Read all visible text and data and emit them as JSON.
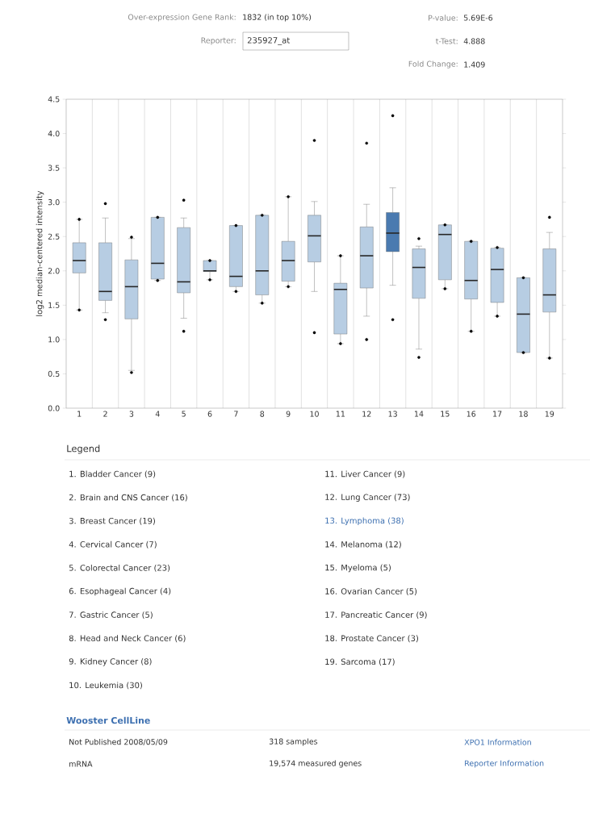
{
  "chart_data": {
    "type": "box",
    "ylabel": "log2 median-centered intensity",
    "categories": [
      "1",
      "2",
      "3",
      "4",
      "5",
      "6",
      "7",
      "8",
      "9",
      "10",
      "11",
      "12",
      "13",
      "14",
      "15",
      "16",
      "17",
      "18",
      "19"
    ],
    "colors": [
      "#b7cde3",
      "#b7cde3",
      "#b7cde3",
      "#b7cde3",
      "#b7cde3",
      "#b7cde3",
      "#b7cde3",
      "#b7cde3",
      "#b7cde3",
      "#b7cde3",
      "#b7cde3",
      "#b7cde3",
      "#4a7ab0",
      "#b7cde3",
      "#b7cde3",
      "#b7cde3",
      "#b7cde3",
      "#b7cde3",
      "#b7cde3"
    ],
    "boxes": [
      {
        "low": 1.43,
        "q1": 1.97,
        "median": 2.15,
        "q3": 2.41,
        "high": 2.75,
        "outliers": [
          2.75,
          1.43
        ]
      },
      {
        "low": 1.39,
        "q1": 1.57,
        "median": 1.7,
        "q3": 2.41,
        "high": 2.77,
        "outliers": [
          2.98,
          1.29
        ]
      },
      {
        "low": 0.55,
        "q1": 1.3,
        "median": 1.77,
        "q3": 2.16,
        "high": 2.47,
        "outliers": [
          2.49,
          0.52
        ]
      },
      {
        "low": 1.86,
        "q1": 1.88,
        "median": 2.11,
        "q3": 2.78,
        "high": 2.78,
        "outliers": [
          2.78,
          1.86
        ]
      },
      {
        "low": 1.31,
        "q1": 1.68,
        "median": 1.84,
        "q3": 2.63,
        "high": 2.77,
        "outliers": [
          3.03,
          1.12
        ]
      },
      {
        "low": 1.87,
        "q1": 1.99,
        "median": 2.0,
        "q3": 2.15,
        "high": 2.15,
        "outliers": [
          2.15,
          1.87
        ]
      },
      {
        "low": 1.7,
        "q1": 1.77,
        "median": 1.92,
        "q3": 2.66,
        "high": 2.66,
        "outliers": [
          2.66,
          1.7
        ]
      },
      {
        "low": 1.53,
        "q1": 1.65,
        "median": 2.0,
        "q3": 2.81,
        "high": 2.81,
        "outliers": [
          2.81,
          1.53
        ]
      },
      {
        "low": 1.77,
        "q1": 1.85,
        "median": 2.15,
        "q3": 2.43,
        "high": 3.08,
        "outliers": [
          3.08,
          1.77
        ]
      },
      {
        "low": 1.7,
        "q1": 2.13,
        "median": 2.51,
        "q3": 2.81,
        "high": 3.01,
        "outliers": [
          3.9,
          1.1
        ]
      },
      {
        "low": 0.94,
        "q1": 1.08,
        "median": 1.73,
        "q3": 1.82,
        "high": 2.22,
        "outliers": [
          2.22,
          0.94
        ]
      },
      {
        "low": 1.34,
        "q1": 1.75,
        "median": 2.22,
        "q3": 2.64,
        "high": 2.97,
        "outliers": [
          3.86,
          1.0
        ]
      },
      {
        "low": 1.79,
        "q1": 2.28,
        "median": 2.55,
        "q3": 2.85,
        "high": 3.21,
        "outliers": [
          4.26,
          1.29
        ]
      },
      {
        "low": 0.86,
        "q1": 1.6,
        "median": 2.05,
        "q3": 2.32,
        "high": 2.36,
        "outliers": [
          2.47,
          0.74
        ]
      },
      {
        "low": 1.74,
        "q1": 1.87,
        "median": 2.53,
        "q3": 2.67,
        "high": 2.67,
        "outliers": [
          2.67,
          1.74
        ]
      },
      {
        "low": 1.12,
        "q1": 1.59,
        "median": 1.86,
        "q3": 2.43,
        "high": 2.43,
        "outliers": [
          2.43,
          1.12
        ]
      },
      {
        "low": 1.34,
        "q1": 1.54,
        "median": 2.02,
        "q3": 2.33,
        "high": 2.34,
        "outliers": [
          2.34,
          1.34
        ]
      },
      {
        "low": 0.81,
        "q1": 0.81,
        "median": 1.37,
        "q3": 1.9,
        "high": 1.9,
        "outliers": [
          1.9,
          0.81
        ]
      },
      {
        "low": 0.73,
        "q1": 1.4,
        "median": 1.65,
        "q3": 2.32,
        "high": 2.56,
        "outliers": [
          2.78,
          0.73
        ]
      }
    ],
    "ylim": [
      0,
      4.5
    ],
    "yticks": [
      {
        "value": 0,
        "label": "0.0"
      },
      0.5,
      {
        "value": 1,
        "label": "1.0"
      },
      1.5,
      {
        "value": 2,
        "label": "2.0"
      },
      2.5,
      {
        "value": 3,
        "label": "3.0"
      },
      3.5,
      {
        "value": 4,
        "label": "4.0"
      },
      4.5
    ],
    "grid": "x",
    "marker": "circle",
    "annotations": [
      "Over-expression Gene Rank:",
      "1832 (in top 10%)",
      "Reporter:",
      "235927_at",
      "P-value:",
      "5.69E-6",
      "t-Test:",
      "4.888",
      "Fold Change:",
      "1.409",
      "Legend",
      "1. Bladder Cancer (9)",
      "2. Brain and CNS Cancer (16)",
      "3. Breast Cancer (19)",
      "4. Cervical Cancer (7)",
      "5. Colorectal Cancer (23)",
      "6. Esophageal Cancer (4)",
      "7. Gastric Cancer (5)",
      "8. Head and Neck Cancer (6)",
      "9. Kidney Cancer (8)",
      "10. Leukemia (30)",
      "11. Liver Cancer (9)",
      "12. Lung Cancer (73)",
      "13. Lymphoma (38)",
      "14. Melanoma (12)",
      "15. Myeloma (5)",
      "16. Ovarian Cancer (5)",
      "17. Pancreatic Cancer (9)",
      "18. Prostate Cancer (3)",
      "19. Sarcoma (17)",
      "Wooster CellLine",
      "Not Published 2008/05/09",
      "318 samples",
      "XPO1 Information",
      "mRNA",
      "19,574 measured genes",
      "Reporter Information"
    ]
  }
}
